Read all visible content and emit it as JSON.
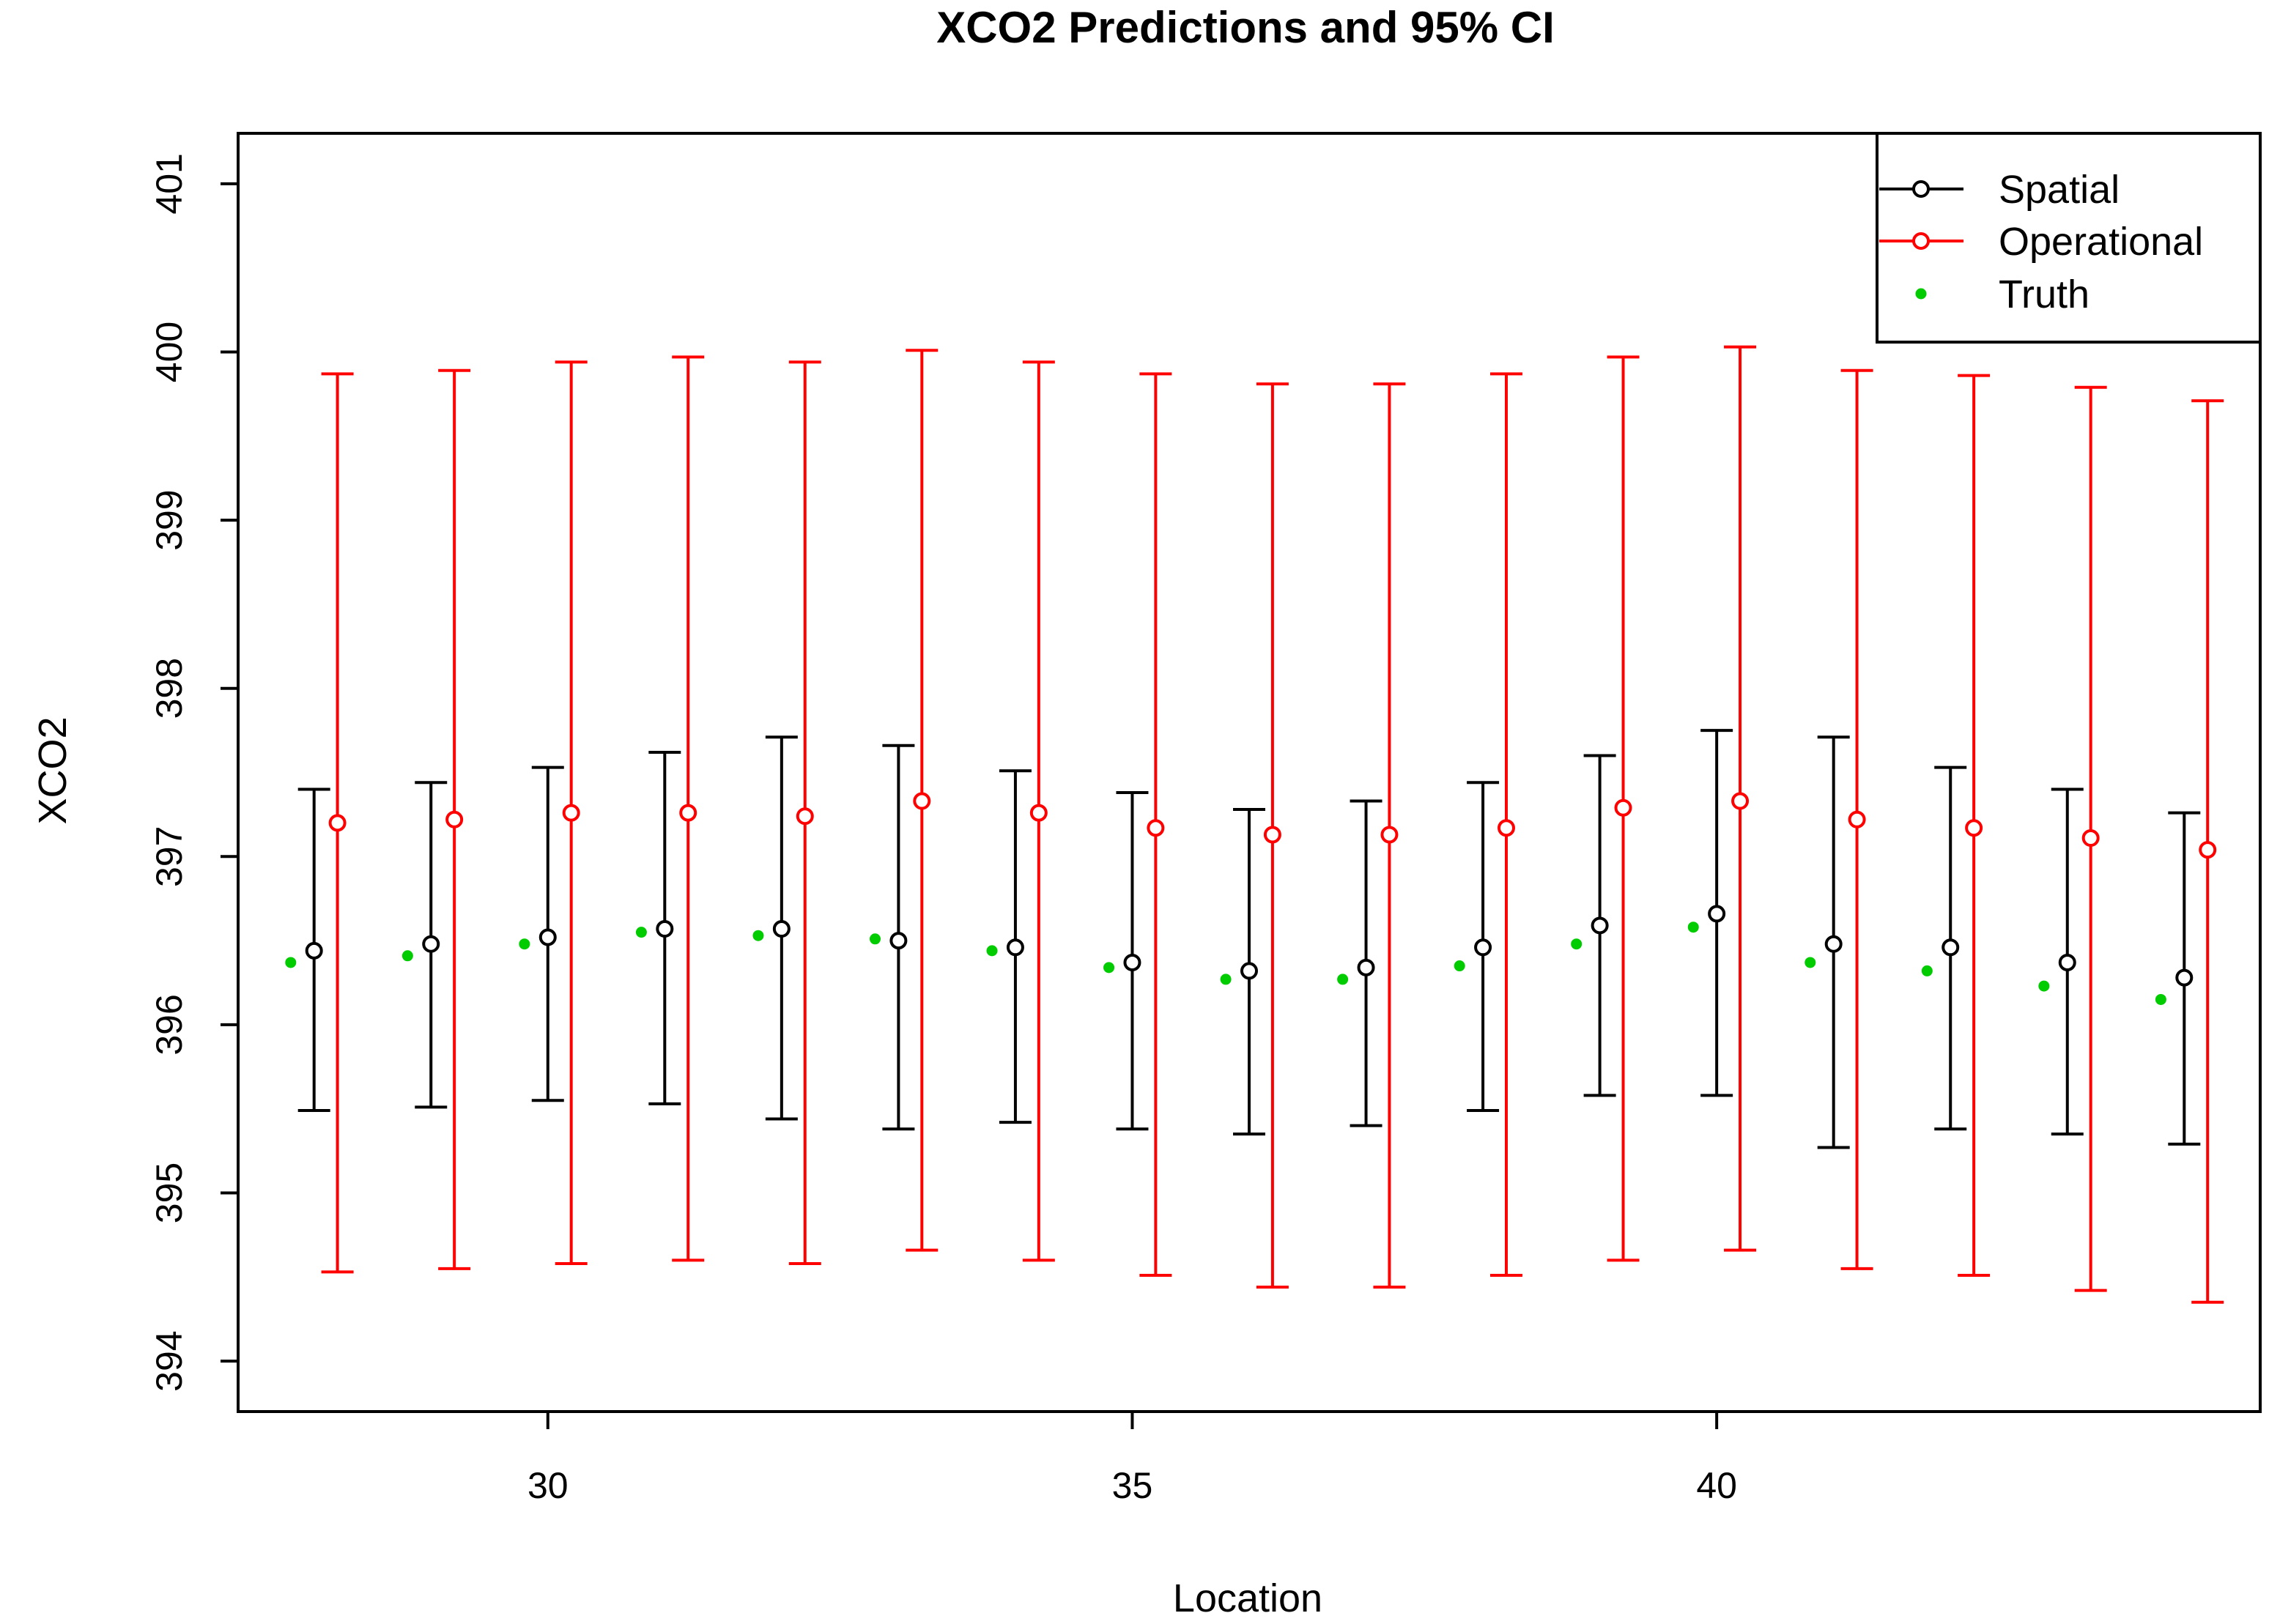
{
  "chart_data": {
    "type": "scatter",
    "title": "XCO2 Predictions and 95% CI",
    "xlabel": "Location",
    "ylabel": "XCO2",
    "xlim": [
      27.35,
      44.65
    ],
    "ylim": [
      393.7,
      401.3
    ],
    "x_ticks": [
      30,
      35,
      40
    ],
    "y_ticks": [
      394,
      395,
      396,
      397,
      398,
      399,
      400,
      401
    ],
    "grid": false,
    "legend_position": "top-right",
    "colors": {
      "spatial": "#000000",
      "operational": "#ff0000",
      "truth": "#00cc00"
    },
    "legend": [
      {
        "label": "Spatial",
        "symbol": "line-open-circle",
        "color": "#000000"
      },
      {
        "label": "Operational",
        "symbol": "line-open-circle",
        "color": "#ff0000"
      },
      {
        "label": "Truth",
        "symbol": "filled-point",
        "color": "#00cc00"
      }
    ],
    "series": [
      {
        "name": "Spatial",
        "x": [
          28,
          29,
          30,
          31,
          32,
          33,
          34,
          35,
          36,
          37,
          38,
          39,
          40,
          41,
          42,
          43,
          44
        ],
        "values": [
          396.44,
          396.48,
          396.52,
          396.57,
          396.57,
          396.5,
          396.46,
          396.37,
          396.32,
          396.34,
          396.46,
          396.59,
          396.66,
          396.48,
          396.46,
          396.37,
          396.28
        ],
        "lower": [
          395.49,
          395.51,
          395.55,
          395.53,
          395.44,
          395.38,
          395.42,
          395.38,
          395.35,
          395.4,
          395.49,
          395.58,
          395.58,
          395.27,
          395.38,
          395.35,
          395.29
        ],
        "upper": [
          397.4,
          397.44,
          397.53,
          397.62,
          397.71,
          397.66,
          397.51,
          397.38,
          397.28,
          397.33,
          397.44,
          397.6,
          397.75,
          397.71,
          397.53,
          397.4,
          397.26
        ]
      },
      {
        "name": "Operational",
        "x": [
          28.2,
          29.2,
          30.2,
          31.2,
          32.2,
          33.2,
          34.2,
          35.2,
          36.2,
          37.2,
          38.2,
          39.2,
          40.2,
          41.2,
          42.2,
          43.2,
          44.2
        ],
        "values": [
          397.2,
          397.22,
          397.26,
          397.26,
          397.24,
          397.33,
          397.26,
          397.17,
          397.13,
          397.13,
          397.17,
          397.29,
          397.33,
          397.22,
          397.17,
          397.11,
          397.04
        ],
        "lower": [
          394.53,
          394.55,
          394.58,
          394.6,
          394.58,
          394.66,
          394.6,
          394.51,
          394.44,
          394.44,
          394.51,
          394.6,
          394.66,
          394.55,
          394.51,
          394.42,
          394.35
        ],
        "upper": [
          399.87,
          399.89,
          399.94,
          399.97,
          399.94,
          400.01,
          399.94,
          399.87,
          399.81,
          399.81,
          399.87,
          399.97,
          400.03,
          399.89,
          399.86,
          399.79,
          399.71
        ]
      },
      {
        "name": "Truth",
        "x": [
          27.8,
          28.8,
          29.8,
          30.8,
          31.8,
          32.8,
          33.8,
          34.8,
          35.8,
          36.8,
          37.8,
          38.8,
          39.8,
          40.8,
          41.8,
          42.8,
          43.8
        ],
        "values": [
          396.37,
          396.41,
          396.48,
          396.55,
          396.53,
          396.51,
          396.44,
          396.34,
          396.27,
          396.27,
          396.35,
          396.48,
          396.58,
          396.37,
          396.32,
          396.23,
          396.15
        ]
      }
    ]
  }
}
